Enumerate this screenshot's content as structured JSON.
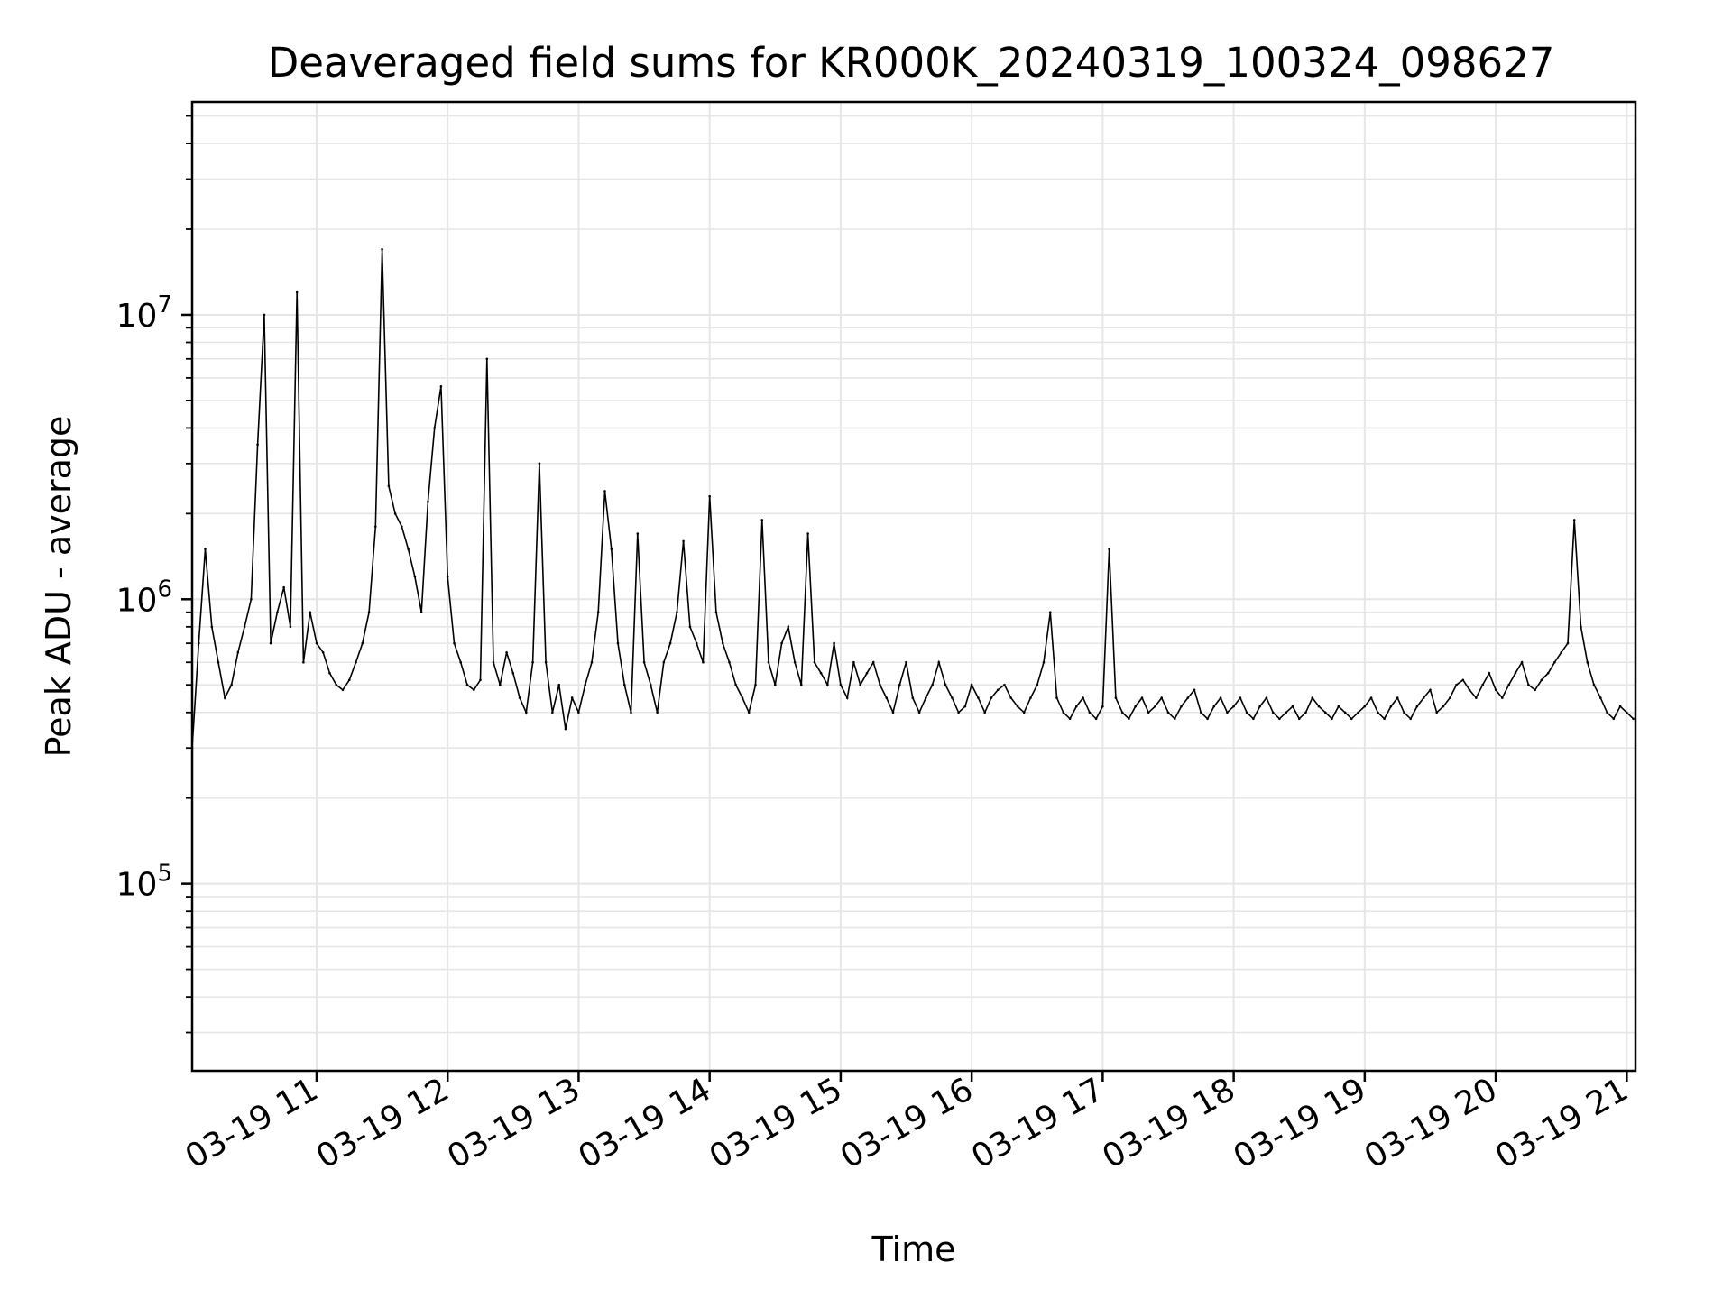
{
  "chart_data": {
    "type": "line",
    "title": "Deaveraged field sums for KR000K_20240319_100324_098627",
    "xlabel": "Time",
    "ylabel": "Peak ADU - average",
    "x_tick_labels": [
      "03-19 11",
      "03-19 12",
      "03-19 13",
      "03-19 14",
      "03-19 15",
      "03-19 16",
      "03-19 17",
      "03-19 18",
      "03-19 19",
      "03-19 20",
      "03-19 21"
    ],
    "x_ticks": [
      "2024-03-19 11:00",
      "2024-03-19 12:00",
      "2024-03-19 13:00",
      "2024-03-19 14:00",
      "2024-03-19 15:00",
      "2024-03-19 16:00",
      "2024-03-19 17:00",
      "2024-03-19 18:00",
      "2024-03-19 19:00",
      "2024-03-19 20:00",
      "2024-03-19 21:00"
    ],
    "y_tick_labels": [
      {
        "base": "10",
        "exp": "5"
      },
      {
        "base": "10",
        "exp": "6"
      },
      {
        "base": "10",
        "exp": "7"
      }
    ],
    "y_ticks": [
      100000,
      1000000,
      10000000
    ],
    "xlim": [
      "2024-03-19 10:03",
      "2024-03-19 21:04"
    ],
    "ylim": [
      22000,
      56000000
    ],
    "yscale": "log",
    "grid": true,
    "line_color": "#000000",
    "grid_color": "#e6e6e6",
    "series": [
      {
        "x": [
          "2024-03-19 10:03",
          "2024-03-19 10:06",
          "2024-03-19 10:09",
          "2024-03-19 10:12",
          "2024-03-19 10:15",
          "2024-03-19 10:18",
          "2024-03-19 10:21",
          "2024-03-19 10:24",
          "2024-03-19 10:27",
          "2024-03-19 10:30",
          "2024-03-19 10:33",
          "2024-03-19 10:36",
          "2024-03-19 10:39",
          "2024-03-19 10:42",
          "2024-03-19 10:45",
          "2024-03-19 10:48",
          "2024-03-19 10:51",
          "2024-03-19 10:54",
          "2024-03-19 10:57",
          "2024-03-19 11:00",
          "2024-03-19 11:03",
          "2024-03-19 11:06",
          "2024-03-19 11:09",
          "2024-03-19 11:12",
          "2024-03-19 11:15",
          "2024-03-19 11:18",
          "2024-03-19 11:21",
          "2024-03-19 11:24",
          "2024-03-19 11:27",
          "2024-03-19 11:30",
          "2024-03-19 11:33",
          "2024-03-19 11:36",
          "2024-03-19 11:39",
          "2024-03-19 11:42",
          "2024-03-19 11:45",
          "2024-03-19 11:48",
          "2024-03-19 11:51",
          "2024-03-19 11:54",
          "2024-03-19 11:57",
          "2024-03-19 12:00",
          "2024-03-19 12:03",
          "2024-03-19 12:06",
          "2024-03-19 12:09",
          "2024-03-19 12:12",
          "2024-03-19 12:15",
          "2024-03-19 12:18",
          "2024-03-19 12:21",
          "2024-03-19 12:24",
          "2024-03-19 12:27",
          "2024-03-19 12:30",
          "2024-03-19 12:33",
          "2024-03-19 12:36",
          "2024-03-19 12:39",
          "2024-03-19 12:42",
          "2024-03-19 12:45",
          "2024-03-19 12:48",
          "2024-03-19 12:51",
          "2024-03-19 12:54",
          "2024-03-19 12:57",
          "2024-03-19 13:00",
          "2024-03-19 13:03",
          "2024-03-19 13:06",
          "2024-03-19 13:09",
          "2024-03-19 13:12",
          "2024-03-19 13:15",
          "2024-03-19 13:18",
          "2024-03-19 13:21",
          "2024-03-19 13:24",
          "2024-03-19 13:27",
          "2024-03-19 13:30",
          "2024-03-19 13:33",
          "2024-03-19 13:36",
          "2024-03-19 13:39",
          "2024-03-19 13:42",
          "2024-03-19 13:45",
          "2024-03-19 13:48",
          "2024-03-19 13:51",
          "2024-03-19 13:54",
          "2024-03-19 13:57",
          "2024-03-19 14:00",
          "2024-03-19 14:03",
          "2024-03-19 14:06",
          "2024-03-19 14:09",
          "2024-03-19 14:12",
          "2024-03-19 14:15",
          "2024-03-19 14:18",
          "2024-03-19 14:21",
          "2024-03-19 14:24",
          "2024-03-19 14:27",
          "2024-03-19 14:30",
          "2024-03-19 14:33",
          "2024-03-19 14:36",
          "2024-03-19 14:39",
          "2024-03-19 14:42",
          "2024-03-19 14:45",
          "2024-03-19 14:48",
          "2024-03-19 14:51",
          "2024-03-19 14:54",
          "2024-03-19 14:57",
          "2024-03-19 15:00",
          "2024-03-19 15:03",
          "2024-03-19 15:06",
          "2024-03-19 15:09",
          "2024-03-19 15:12",
          "2024-03-19 15:15",
          "2024-03-19 15:18",
          "2024-03-19 15:21",
          "2024-03-19 15:24",
          "2024-03-19 15:27",
          "2024-03-19 15:30",
          "2024-03-19 15:33",
          "2024-03-19 15:36",
          "2024-03-19 15:39",
          "2024-03-19 15:42",
          "2024-03-19 15:45",
          "2024-03-19 15:48",
          "2024-03-19 15:51",
          "2024-03-19 15:54",
          "2024-03-19 15:57",
          "2024-03-19 16:00",
          "2024-03-19 16:03",
          "2024-03-19 16:06",
          "2024-03-19 16:09",
          "2024-03-19 16:12",
          "2024-03-19 16:15",
          "2024-03-19 16:18",
          "2024-03-19 16:21",
          "2024-03-19 16:24",
          "2024-03-19 16:27",
          "2024-03-19 16:30",
          "2024-03-19 16:33",
          "2024-03-19 16:36",
          "2024-03-19 16:39",
          "2024-03-19 16:42",
          "2024-03-19 16:45",
          "2024-03-19 16:48",
          "2024-03-19 16:51",
          "2024-03-19 16:54",
          "2024-03-19 16:57",
          "2024-03-19 17:00",
          "2024-03-19 17:03",
          "2024-03-19 17:06",
          "2024-03-19 17:09",
          "2024-03-19 17:12",
          "2024-03-19 17:15",
          "2024-03-19 17:18",
          "2024-03-19 17:21",
          "2024-03-19 17:24",
          "2024-03-19 17:27",
          "2024-03-19 17:30",
          "2024-03-19 17:33",
          "2024-03-19 17:36",
          "2024-03-19 17:39",
          "2024-03-19 17:42",
          "2024-03-19 17:45",
          "2024-03-19 17:48",
          "2024-03-19 17:51",
          "2024-03-19 17:54",
          "2024-03-19 17:57",
          "2024-03-19 18:00",
          "2024-03-19 18:03",
          "2024-03-19 18:06",
          "2024-03-19 18:09",
          "2024-03-19 18:12",
          "2024-03-19 18:15",
          "2024-03-19 18:18",
          "2024-03-19 18:21",
          "2024-03-19 18:24",
          "2024-03-19 18:27",
          "2024-03-19 18:30",
          "2024-03-19 18:33",
          "2024-03-19 18:36",
          "2024-03-19 18:39",
          "2024-03-19 18:42",
          "2024-03-19 18:45",
          "2024-03-19 18:48",
          "2024-03-19 18:51",
          "2024-03-19 18:54",
          "2024-03-19 18:57",
          "2024-03-19 19:00",
          "2024-03-19 19:03",
          "2024-03-19 19:06",
          "2024-03-19 19:09",
          "2024-03-19 19:12",
          "2024-03-19 19:15",
          "2024-03-19 19:18",
          "2024-03-19 19:21",
          "2024-03-19 19:24",
          "2024-03-19 19:27",
          "2024-03-19 19:30",
          "2024-03-19 19:33",
          "2024-03-19 19:36",
          "2024-03-19 19:39",
          "2024-03-19 19:42",
          "2024-03-19 19:45",
          "2024-03-19 19:48",
          "2024-03-19 19:51",
          "2024-03-19 19:54",
          "2024-03-19 19:57",
          "2024-03-19 20:00",
          "2024-03-19 20:03",
          "2024-03-19 20:06",
          "2024-03-19 20:09",
          "2024-03-19 20:12",
          "2024-03-19 20:15",
          "2024-03-19 20:18",
          "2024-03-19 20:21",
          "2024-03-19 20:24",
          "2024-03-19 20:27",
          "2024-03-19 20:30",
          "2024-03-19 20:33",
          "2024-03-19 20:36",
          "2024-03-19 20:39",
          "2024-03-19 20:42",
          "2024-03-19 20:45",
          "2024-03-19 20:48",
          "2024-03-19 20:51",
          "2024-03-19 20:54",
          "2024-03-19 20:57",
          "2024-03-19 21:00",
          "2024-03-19 21:03"
        ],
        "values": [
          300000,
          700000,
          1500000,
          800000,
          600000,
          450000,
          500000,
          650000,
          800000,
          1000000,
          3500000,
          10000000,
          700000,
          900000,
          1100000,
          800000,
          12000000,
          600000,
          900000,
          700000,
          650000,
          550000,
          500000,
          480000,
          520000,
          600000,
          700000,
          900000,
          1800000,
          17000000,
          2500000,
          2000000,
          1800000,
          1500000,
          1200000,
          900000,
          2200000,
          4000000,
          5600000,
          1200000,
          700000,
          600000,
          500000,
          480000,
          520000,
          7000000,
          600000,
          500000,
          650000,
          550000,
          450000,
          400000,
          600000,
          3000000,
          600000,
          400000,
          500000,
          350000,
          450000,
          400000,
          500000,
          600000,
          900000,
          2400000,
          1500000,
          700000,
          500000,
          400000,
          1700000,
          600000,
          500000,
          400000,
          600000,
          700000,
          900000,
          1600000,
          800000,
          700000,
          600000,
          2300000,
          900000,
          700000,
          600000,
          500000,
          450000,
          400000,
          500000,
          1900000,
          600000,
          500000,
          700000,
          800000,
          600000,
          500000,
          1700000,
          600000,
          550000,
          500000,
          700000,
          500000,
          450000,
          600000,
          500000,
          550000,
          600000,
          500000,
          450000,
          400000,
          500000,
          600000,
          450000,
          400000,
          450000,
          500000,
          600000,
          500000,
          450000,
          400000,
          420000,
          500000,
          450000,
          400000,
          450000,
          480000,
          500000,
          450000,
          420000,
          400000,
          450000,
          500000,
          600000,
          900000,
          450000,
          400000,
          380000,
          420000,
          450000,
          400000,
          380000,
          420000,
          1500000,
          450000,
          400000,
          380000,
          420000,
          450000,
          400000,
          420000,
          450000,
          400000,
          380000,
          420000,
          450000,
          480000,
          400000,
          380000,
          420000,
          450000,
          400000,
          420000,
          450000,
          400000,
          380000,
          420000,
          450000,
          400000,
          380000,
          400000,
          420000,
          380000,
          400000,
          450000,
          420000,
          400000,
          380000,
          420000,
          400000,
          380000,
          400000,
          420000,
          450000,
          400000,
          380000,
          420000,
          450000,
          400000,
          380000,
          420000,
          450000,
          480000,
          400000,
          420000,
          450000,
          500000,
          520000,
          480000,
          450000,
          500000,
          550000,
          480000,
          450000,
          500000,
          550000,
          600000,
          500000,
          480000,
          520000,
          550000,
          600000,
          650000,
          700000,
          1900000,
          800000,
          600000,
          500000,
          450000,
          400000,
          380000,
          420000,
          400000,
          380000
        ]
      }
    ]
  }
}
